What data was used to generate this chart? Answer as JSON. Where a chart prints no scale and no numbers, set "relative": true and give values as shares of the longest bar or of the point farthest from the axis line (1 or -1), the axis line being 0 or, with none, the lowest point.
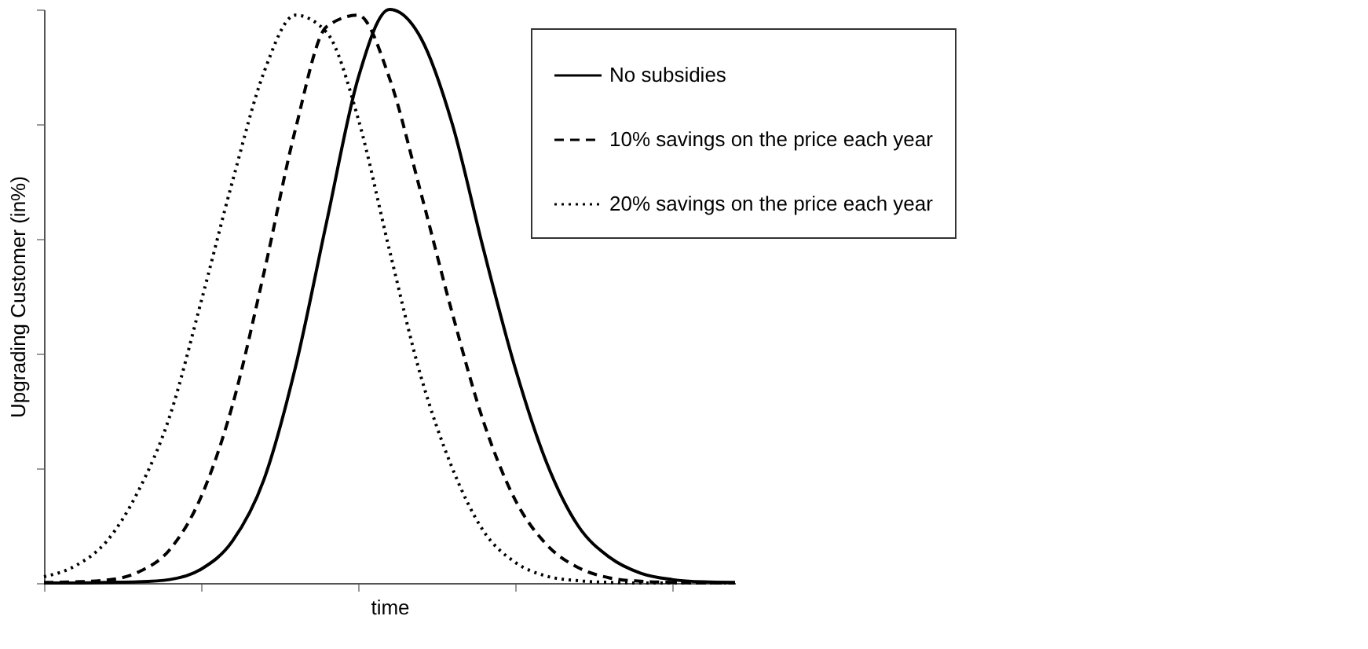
{
  "chart_data": {
    "type": "line",
    "relative": true,
    "xlabel": "time",
    "ylabel": "Upgrading Customer (in%)",
    "categories": [
      null,
      null,
      null,
      null,
      null,
      null,
      null,
      null,
      null,
      null,
      null,
      null,
      null,
      null,
      null,
      null,
      null,
      null,
      null,
      null,
      null,
      null,
      null
    ],
    "series": [
      {
        "name": "No subsidies",
        "color": "#000000",
        "line_style": "solid",
        "values": [
          0,
          0,
          0.001,
          0.002,
          0.006,
          0.024,
          0.073,
          0.18,
          0.375,
          0.63,
          0.88,
          1.0,
          0.95,
          0.8,
          0.58,
          0.375,
          0.21,
          0.1,
          0.045,
          0.017,
          0.006,
          0.002,
          0.001
        ]
      },
      {
        "name": "10% savings on the price each year",
        "color": "#000000",
        "line_style": "dashed",
        "values": [
          0.001,
          0.002,
          0.005,
          0.019,
          0.058,
          0.15,
          0.31,
          0.54,
          0.79,
          0.97,
          0.99,
          0.88,
          0.68,
          0.47,
          0.28,
          0.145,
          0.067,
          0.027,
          0.009,
          0.003,
          0.001,
          0,
          0
        ]
      },
      {
        "name": "20% savings on the price each year",
        "color": "#000000",
        "line_style": "dotted",
        "values": [
          0.011,
          0.03,
          0.073,
          0.16,
          0.29,
          0.49,
          0.7,
          0.89,
          0.99,
          0.96,
          0.81,
          0.58,
          0.36,
          0.2,
          0.09,
          0.036,
          0.012,
          0.004,
          0.001,
          0,
          0,
          0,
          0
        ]
      }
    ],
    "legend": "top right",
    "grid": false
  }
}
